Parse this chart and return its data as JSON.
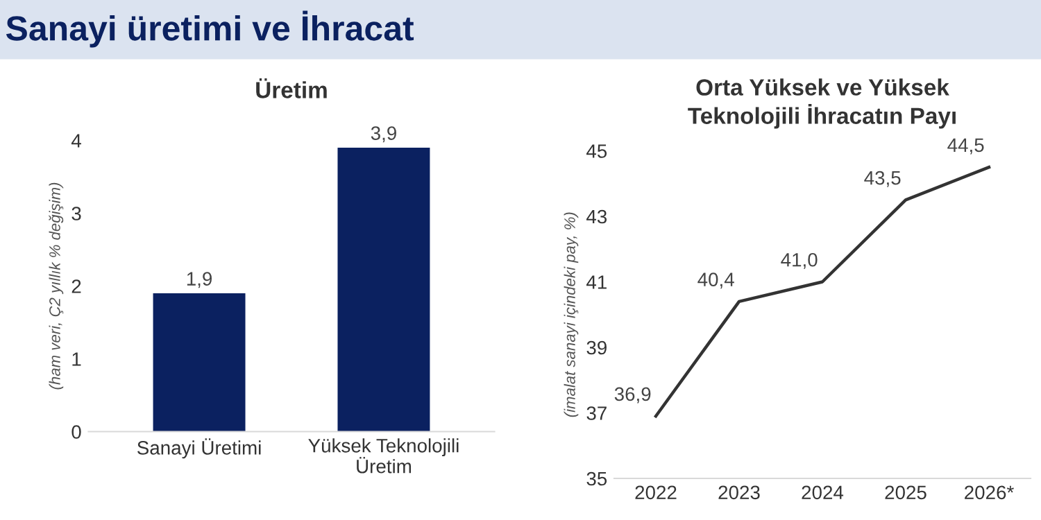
{
  "chart_data": [
    {
      "type": "bar",
      "title": "Üretim",
      "ylabel": "(ham veri, Ç2 yıllık % değişim)",
      "annotations": [
        "Sanayi üretimi ve İhracat"
      ],
      "categories": [
        "Sanayi Üretimi",
        "Yüksek Teknolojili\nÜretim"
      ],
      "values": [
        1.9,
        3.9
      ],
      "color": "#0b2160",
      "value_labels": [
        "1,9",
        "3,9"
      ],
      "ylim": [
        0,
        4
      ],
      "yticks": [
        0,
        1,
        2,
        3,
        4
      ],
      "grid": false,
      "legend": false
    },
    {
      "type": "line",
      "title": "Orta Yüksek ve Yüksek\nTeknolojili İhracatın Payı",
      "ylabel": "(imalat sanayi içindeki pay, %)",
      "categories": [
        "2022",
        "2023",
        "2024",
        "2025",
        "2026*"
      ],
      "values": [
        36.9,
        40.4,
        41.0,
        43.5,
        44.5
      ],
      "color": "#333333",
      "value_labels": [
        "36,9",
        "40,4",
        "41,0",
        "43,5",
        "44,5"
      ],
      "ylim": [
        35,
        45
      ],
      "yticks": [
        35,
        37,
        39,
        41,
        43,
        45
      ],
      "grid": false,
      "legend": false,
      "marker": "none",
      "line_style": "solid"
    }
  ]
}
